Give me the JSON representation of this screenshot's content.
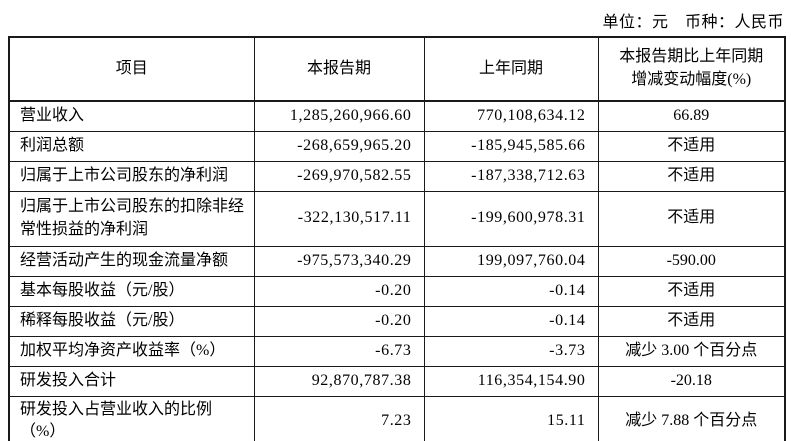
{
  "meta": {
    "unit_line": "单位：元　币种：人民币"
  },
  "table": {
    "headers": {
      "item": "项目",
      "current_period": "本报告期",
      "prior_period": "上年同期",
      "change": "本报告期比上年同期增减变动幅度(%)"
    },
    "rows": [
      {
        "item": "营业收入",
        "current": "1,285,260,966.60",
        "prior": "770,108,634.12",
        "change": "66.89"
      },
      {
        "item": "利润总额",
        "current": "-268,659,965.20",
        "prior": "-185,945,585.66",
        "change": "不适用"
      },
      {
        "item": "归属于上市公司股东的净利润",
        "current": "-269,970,582.55",
        "prior": "-187,338,712.63",
        "change": "不适用"
      },
      {
        "item": "归属于上市公司股东的扣除非经常性损益的净利润",
        "current": "-322,130,517.11",
        "prior": "-199,600,978.31",
        "change": "不适用"
      },
      {
        "item": "经营活动产生的现金流量净额",
        "current": "-975,573,340.29",
        "prior": "199,097,760.04",
        "change": "-590.00"
      },
      {
        "item": "基本每股收益（元/股）",
        "current": "-0.20",
        "prior": "-0.14",
        "change": "不适用"
      },
      {
        "item": "稀释每股收益（元/股）",
        "current": "-0.20",
        "prior": "-0.14",
        "change": "不适用"
      },
      {
        "item": "加权平均净资产收益率（%）",
        "current": "-6.73",
        "prior": "-3.73",
        "change": "减少 3.00 个百分点"
      },
      {
        "item": "研发投入合计",
        "current": "92,870,787.38",
        "prior": "116,354,154.90",
        "change": "-20.18"
      },
      {
        "item": "研发投入占营业收入的比例（%）",
        "current": "7.23",
        "prior": "15.11",
        "change": "减少 7.88 个百分点"
      }
    ]
  }
}
